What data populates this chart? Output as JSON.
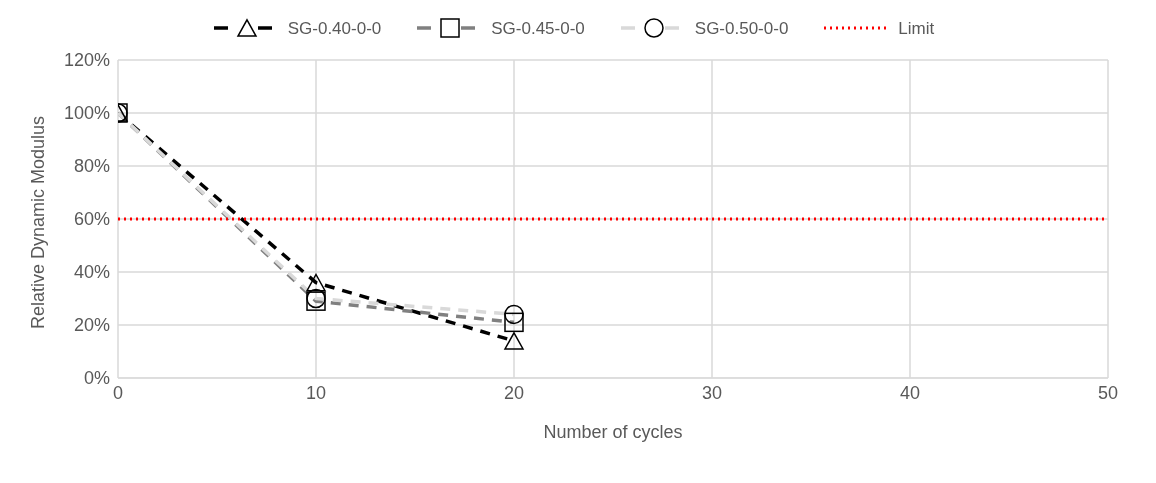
{
  "chart_data": {
    "type": "line",
    "xlabel": "Number of cycles",
    "ylabel": "Relative Dynamic Modulus",
    "xlim": [
      0,
      50
    ],
    "xticks": [
      0,
      10,
      20,
      30,
      40,
      50
    ],
    "ylim": [
      0,
      1.2
    ],
    "yticks": [
      {
        "value": 0,
        "label": "0%"
      },
      {
        "value": 0.2,
        "label": "20%"
      },
      {
        "value": 0.4,
        "label": "40%"
      },
      {
        "value": 0.6,
        "label": "60%"
      },
      {
        "value": 0.8,
        "label": "80%"
      },
      {
        "value": 1,
        "label": "100%"
      },
      {
        "value": 1.2,
        "label": "120%"
      }
    ],
    "grid": true,
    "legend": "top",
    "series": [
      {
        "name": "SG-0.40-0-0",
        "color": "#000000",
        "x": [
          0,
          10,
          20
        ],
        "values": [
          1,
          0.36,
          0.14
        ],
        "marker": "triangle",
        "line_style": "dashed"
      },
      {
        "name": "SG-0.45-0-0",
        "color": "#808080",
        "x": [
          0,
          10,
          20
        ],
        "values": [
          1,
          0.29,
          0.21
        ],
        "marker": "square",
        "line_style": "dashed"
      },
      {
        "name": "SG-0.50-0-0",
        "color": "#d9d9d9",
        "x": [
          0,
          10,
          20
        ],
        "values": [
          1,
          0.3,
          0.24
        ],
        "marker": "circle",
        "line_style": "dashed"
      },
      {
        "name": "Limit",
        "color": "#ff0000",
        "x": [
          0,
          50
        ],
        "values": [
          0.6,
          0.6
        ],
        "marker": "none",
        "line_style": "dotted"
      }
    ]
  }
}
